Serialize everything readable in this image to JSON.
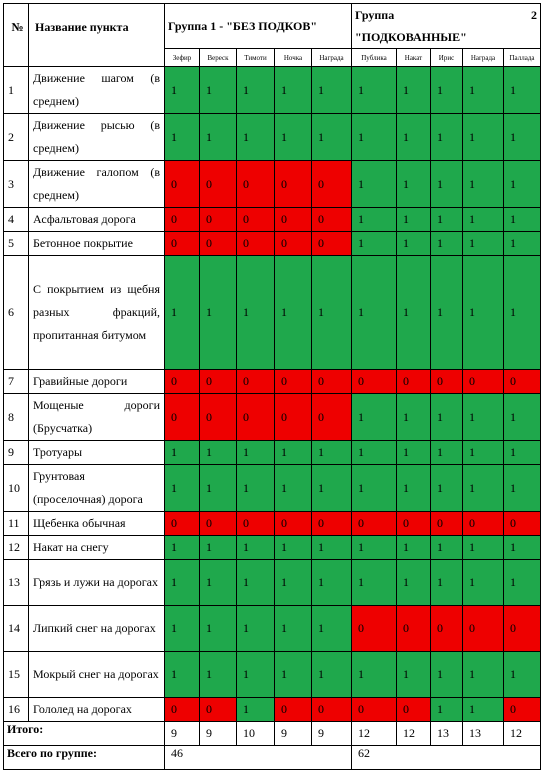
{
  "header": {
    "num": "№",
    "name": "Название пункта",
    "group1": "Группа 1 - \"БЕЗ ПОДКОВ\"",
    "group2_line1_left": "Группа",
    "group2_line1_right": "2",
    "group2_line2": "\"ПОДКОВАННЫЕ\""
  },
  "horses": [
    "Зефир",
    "Вереск",
    "Тимоти",
    "Ночка",
    "Награда",
    "Публика",
    "Накат",
    "Ирис",
    "Награда",
    "Паллада"
  ],
  "rows": [
    {
      "num": "1",
      "name": "Движение шагом (в среднем)",
      "values": [
        "1",
        "1",
        "1",
        "1",
        "1",
        "1",
        "1",
        "1",
        "1",
        "1"
      ],
      "colors": [
        "g",
        "g",
        "g",
        "g",
        "g",
        "g",
        "g",
        "g",
        "g",
        "g"
      ]
    },
    {
      "num": "2",
      "name": "Движение рысью (в среднем)",
      "values": [
        "1",
        "1",
        "1",
        "1",
        "1",
        "1",
        "1",
        "1",
        "1",
        "1"
      ],
      "colors": [
        "g",
        "g",
        "g",
        "g",
        "g",
        "g",
        "g",
        "g",
        "g",
        "g"
      ]
    },
    {
      "num": "3",
      "name": "Движение галопом (в среднем)",
      "values": [
        "0",
        "0",
        "0",
        "0",
        "0",
        "1",
        "1",
        "1",
        "1",
        "1"
      ],
      "colors": [
        "r",
        "r",
        "r",
        "r",
        "r",
        "g",
        "g",
        "g",
        "g",
        "g"
      ]
    },
    {
      "num": "4",
      "name": "Асфальтовая дорога",
      "values": [
        "0",
        "0",
        "0",
        "0",
        "0",
        "1",
        "1",
        "1",
        "1",
        "1"
      ],
      "colors": [
        "r",
        "r",
        "r",
        "r",
        "r",
        "g",
        "g",
        "g",
        "g",
        "g"
      ]
    },
    {
      "num": "5",
      "name": "Бетонное покрытие",
      "values": [
        "0",
        "0",
        "0",
        "0",
        "0",
        "1",
        "1",
        "1",
        "1",
        "1"
      ],
      "colors": [
        "r",
        "r",
        "r",
        "r",
        "r",
        "g",
        "g",
        "g",
        "g",
        "g"
      ]
    },
    {
      "num": "6",
      "name": "С покрытием из щебня разных фракций, пропитанная битумом",
      "values": [
        "1",
        "1",
        "1",
        "1",
        "1",
        "1",
        "1",
        "1",
        "1",
        "1"
      ],
      "colors": [
        "g",
        "g",
        "g",
        "g",
        "g",
        "g",
        "g",
        "g",
        "g",
        "g"
      ]
    },
    {
      "num": "7",
      "name": "Гравийные дороги",
      "values": [
        "0",
        "0",
        "0",
        "0",
        "0",
        "0",
        "0",
        "0",
        "0",
        "0"
      ],
      "colors": [
        "r",
        "r",
        "r",
        "r",
        "r",
        "r",
        "r",
        "r",
        "r",
        "r"
      ]
    },
    {
      "num": "8",
      "name": "Мощеные дороги (Брусчатка)",
      "values": [
        "0",
        "0",
        "0",
        "0",
        "0",
        "1",
        "1",
        "1",
        "1",
        "1"
      ],
      "colors": [
        "r",
        "r",
        "r",
        "r",
        "r",
        "g",
        "g",
        "g",
        "g",
        "g"
      ]
    },
    {
      "num": "9",
      "name": "Тротуары",
      "values": [
        "1",
        "1",
        "1",
        "1",
        "1",
        "1",
        "1",
        "1",
        "1",
        "1"
      ],
      "colors": [
        "g",
        "g",
        "g",
        "g",
        "g",
        "g",
        "g",
        "g",
        "g",
        "g"
      ]
    },
    {
      "num": "10",
      "name": "Грунтовая (проселочная) дорога",
      "values": [
        "1",
        "1",
        "1",
        "1",
        "1",
        "1",
        "1",
        "1",
        "1",
        "1"
      ],
      "colors": [
        "g",
        "g",
        "g",
        "g",
        "g",
        "g",
        "g",
        "g",
        "g",
        "g"
      ]
    },
    {
      "num": "11",
      "name": "Щебенка обычная",
      "values": [
        "0",
        "0",
        "0",
        "0",
        "0",
        "0",
        "0",
        "0",
        "0",
        "0"
      ],
      "colors": [
        "r",
        "r",
        "r",
        "r",
        "r",
        "r",
        "r",
        "r",
        "r",
        "r"
      ]
    },
    {
      "num": "12",
      "name": "Накат на снегу",
      "values": [
        "1",
        "1",
        "1",
        "1",
        "1",
        "1",
        "1",
        "1",
        "1",
        "1"
      ],
      "colors": [
        "g",
        "g",
        "g",
        "g",
        "g",
        "g",
        "g",
        "g",
        "g",
        "g"
      ]
    },
    {
      "num": "13",
      "name": "Грязь и лужи на дорогах",
      "values": [
        "1",
        "1",
        "1",
        "1",
        "1",
        "1",
        "1",
        "1",
        "1",
        "1"
      ],
      "colors": [
        "g",
        "g",
        "g",
        "g",
        "g",
        "g",
        "g",
        "g",
        "g",
        "g"
      ]
    },
    {
      "num": "14",
      "name": "Липкий снег на дорогах",
      "values": [
        "1",
        "1",
        "1",
        "1",
        "1",
        "0",
        "0",
        "0",
        "0",
        "0"
      ],
      "colors": [
        "g",
        "g",
        "g",
        "g",
        "g",
        "r",
        "r",
        "r",
        "r",
        "r"
      ]
    },
    {
      "num": "15",
      "name": "Мокрый снег на дорогах",
      "values": [
        "1",
        "1",
        "1",
        "1",
        "1",
        "1",
        "1",
        "1",
        "1",
        "1"
      ],
      "colors": [
        "g",
        "g",
        "g",
        "g",
        "g",
        "g",
        "g",
        "g",
        "g",
        "g"
      ]
    },
    {
      "num": "16",
      "name": "Гололед на дорогах",
      "values": [
        "0",
        "0",
        "1",
        "0",
        "0",
        "0",
        "0",
        "1",
        "1",
        "0"
      ],
      "colors": [
        "r",
        "r",
        "g",
        "r",
        "r",
        "r",
        "r",
        "g",
        "g",
        "r"
      ]
    }
  ],
  "totals": {
    "label": "Итого:",
    "values": [
      "9",
      "9",
      "10",
      "9",
      "9",
      "12",
      "12",
      "13",
      "13",
      "12"
    ]
  },
  "group_totals": {
    "label": "Всего по группе:",
    "group1": "46",
    "group2": "62"
  },
  "colors": {
    "green": "#1fa84c",
    "red": "#ee0000"
  }
}
